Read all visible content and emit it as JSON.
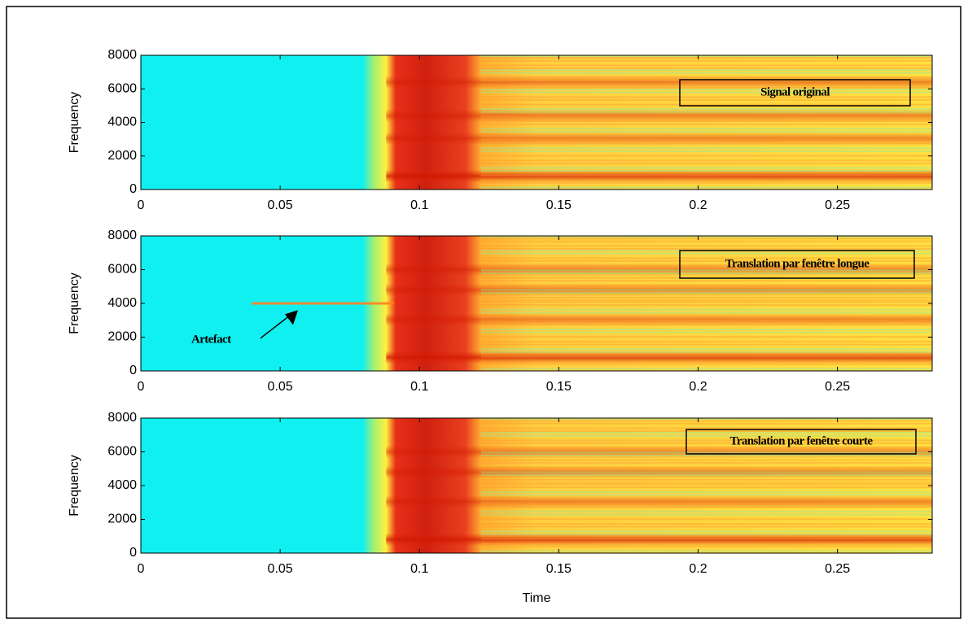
{
  "chart_data": [
    {
      "type": "spectrogram",
      "ylabel": "Frequency",
      "xlim": [
        0,
        0.284
      ],
      "ylim": [
        0,
        8000
      ],
      "xticks": [
        0,
        0.05,
        0.1,
        0.15,
        0.2,
        0.25
      ],
      "yticks": [
        0,
        2000,
        4000,
        6000,
        8000
      ],
      "legend": "Signal original"
    },
    {
      "type": "spectrogram",
      "ylabel": "Frequency",
      "xlim": [
        0,
        0.284
      ],
      "ylim": [
        0,
        8000
      ],
      "xticks": [
        0,
        0.05,
        0.1,
        0.15,
        0.2,
        0.25
      ],
      "yticks": [
        0,
        2000,
        4000,
        6000,
        8000
      ],
      "legend": "Translation par fenêtre longue",
      "annotation": "Artefact"
    },
    {
      "type": "spectrogram",
      "ylabel": "Frequency",
      "xlabel": "Time",
      "xlim": [
        0,
        0.284
      ],
      "ylim": [
        0,
        8000
      ],
      "xticks": [
        0,
        0.05,
        0.1,
        0.15,
        0.2,
        0.25
      ],
      "yticks": [
        0,
        2000,
        4000,
        6000,
        8000
      ],
      "legend": "Translation par fenêtre courte"
    }
  ]
}
